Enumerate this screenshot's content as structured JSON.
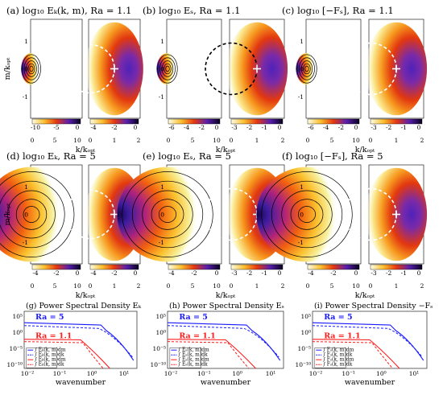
{
  "panels": [
    {
      "title": "(a) log₁₀ Eₖ(k, m), Ra = 1.1",
      "cbar_left": [
        "-10",
        "-5",
        "0"
      ],
      "cbar_right": [
        "-4",
        "-2",
        "0"
      ],
      "ring": "white"
    },
    {
      "title": "(b) log₁₀ Eₛ, Ra = 1.1",
      "cbar_left": [
        "-6",
        "-4",
        "-2",
        "0"
      ],
      "cbar_right": [
        "-3",
        "-2",
        "-1",
        "0"
      ],
      "ring": "black"
    },
    {
      "title": "(c) log₁₀ [−Fₛ], Ra = 1.1",
      "cbar_left": [
        "-6",
        "-4",
        "-2",
        "0"
      ],
      "cbar_right": [
        "-3",
        "-2",
        "-1",
        "0"
      ],
      "ring": "white"
    },
    {
      "title": "(d) log₁₀ Eₖ, Ra = 5",
      "cbar_left": [
        "-4",
        "-2",
        "0"
      ],
      "cbar_right": [
        "-4",
        "-2",
        "0"
      ],
      "ring": "white"
    },
    {
      "title": "(e) log₁₀ Eₛ, Ra = 5",
      "cbar_left": [
        "-4",
        "-2",
        "0"
      ],
      "cbar_right": [
        "-3",
        "-2",
        "-1",
        "0"
      ],
      "ring": "white"
    },
    {
      "title": "(f) log₁₀ [−Fₛ], Ra = 5",
      "cbar_left": [
        "-4",
        "-2",
        "0"
      ],
      "cbar_right": [
        "-3",
        "-2",
        "-1",
        "0"
      ],
      "ring": "white"
    }
  ],
  "axes": {
    "ylabel": "m/kₒₚₜ",
    "xlabel": "k/kₒₚₜ",
    "left_y_ticks": [
      "1",
      "0",
      "-1"
    ],
    "left_x_ticks": [
      "0",
      "5",
      "10"
    ],
    "right_x_ticks": [
      "0",
      "1",
      "2"
    ]
  },
  "psd": {
    "xlabel": "wavenumber",
    "y_ticks": [
      "10⁵",
      "10⁰",
      "10⁻⁵",
      "10⁻¹⁰"
    ],
    "x_ticks": [
      "10⁻²",
      "10⁻¹",
      "10⁰",
      "10¹"
    ],
    "colors": {
      "ra5": "#1a1aff",
      "ra11": "#ff1a1a"
    },
    "panels": [
      {
        "title": "(g) Power Spectral Density Eₖ",
        "ra5": "Ra = 5",
        "ra11": "Ra = 1.1",
        "legend": [
          "∫ Eₖ(k, m)dm",
          "∫ Eₖ(k, m)dk",
          "∫ Eₖ(k, m)dm",
          "∫ Eₖ(k, m)dk"
        ]
      },
      {
        "title": "(h) Power Spectral Density Eₛ",
        "ra5": "Ra = 5",
        "ra11": "Ra = 1.1",
        "legend": [
          "∫ Eₛ(k, m)dm",
          "∫ Eₛ(k, m)dk",
          "∫ Eₛ(k, m)dm",
          "∫ Eₛ(k, m)dk"
        ]
      },
      {
        "title": "(i) Power Spectral Density −Fₛ",
        "ra5": "Ra = 5",
        "ra11": "Ra = 1.1",
        "legend": [
          "∫ Fₛ(k, m)dm",
          "∫ Fₛ(k, m)dk",
          "∫ Fₛ(k, m)dm",
          "∫ Fₛ(k, m)dk"
        ]
      }
    ]
  }
}
